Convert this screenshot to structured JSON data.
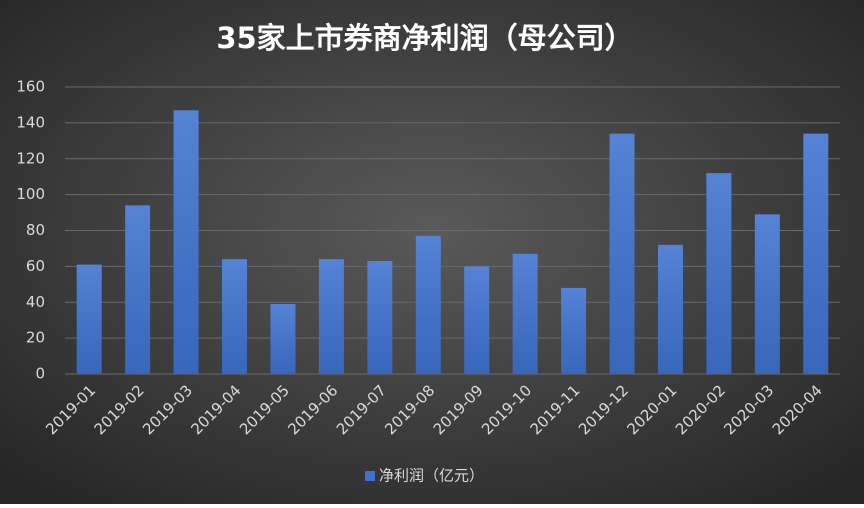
{
  "chart_data": {
    "type": "bar",
    "title": "35家上市券商净利润（母公司）",
    "categories": [
      "2019-01",
      "2019-02",
      "2019-03",
      "2019-04",
      "2019-05",
      "2019-06",
      "2019-07",
      "2019-08",
      "2019-09",
      "2019-10",
      "2019-11",
      "2019-12",
      "2020-01",
      "2020-02",
      "2020-03",
      "2020-04"
    ],
    "series": [
      {
        "name": "净利润（亿元）",
        "color": "#3f72d0",
        "values": [
          61,
          94,
          147,
          64,
          39,
          64,
          63,
          77,
          60,
          67,
          48,
          134,
          72,
          112,
          89,
          134
        ]
      }
    ],
    "ylim": [
      0,
      160
    ],
    "yticks": [
      0,
      20,
      40,
      60,
      80,
      100,
      120,
      140,
      160
    ],
    "grid": true,
    "legend": "bottom"
  }
}
